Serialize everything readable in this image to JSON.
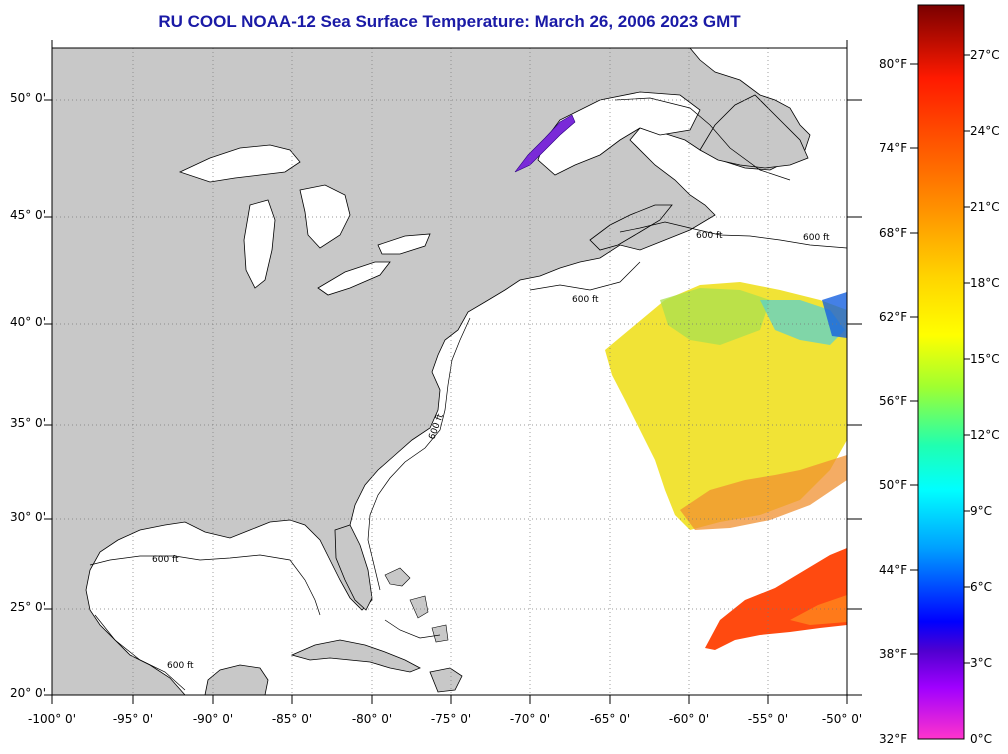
{
  "title": "RU COOL  NOAA-12  Sea Surface Temperature:  March 26, 2006 2023 GMT",
  "colors": {
    "title": "#1a1aa6",
    "land": "#c8c8c8",
    "ocean": "#ffffff",
    "grid": "#555555"
  },
  "lat_labels": [
    "50° 0'",
    "45° 0'",
    "40° 0'",
    "35° 0'",
    "30° 0'",
    "25° 0'",
    "20° 0'"
  ],
  "lon_labels": [
    "-100° 0'",
    "-95° 0'",
    "-90° 0'",
    "-85° 0'",
    "-80° 0'",
    "-75° 0'",
    "-70° 0'",
    "-65° 0'",
    "-60° 0'",
    "-55° 0'",
    "-50° 0'"
  ],
  "depth_contour_label": "600 ft",
  "colorbar": {
    "fahrenheit": [
      "80°F",
      "74°F",
      "68°F",
      "62°F",
      "56°F",
      "50°F",
      "44°F",
      "38°F",
      "32°F"
    ],
    "celsius": [
      "27°C",
      "24°C",
      "21°C",
      "18°C",
      "15°C",
      "12°C",
      "9°C",
      "6°C",
      "3°C",
      "0°C"
    ],
    "stops": [
      "#8b0000",
      "#ff0000",
      "#ff7f00",
      "#ffff00",
      "#80ff40",
      "#00ffff",
      "#0080ff",
      "#0000ff",
      "#7f00ff",
      "#ff00ff"
    ]
  }
}
